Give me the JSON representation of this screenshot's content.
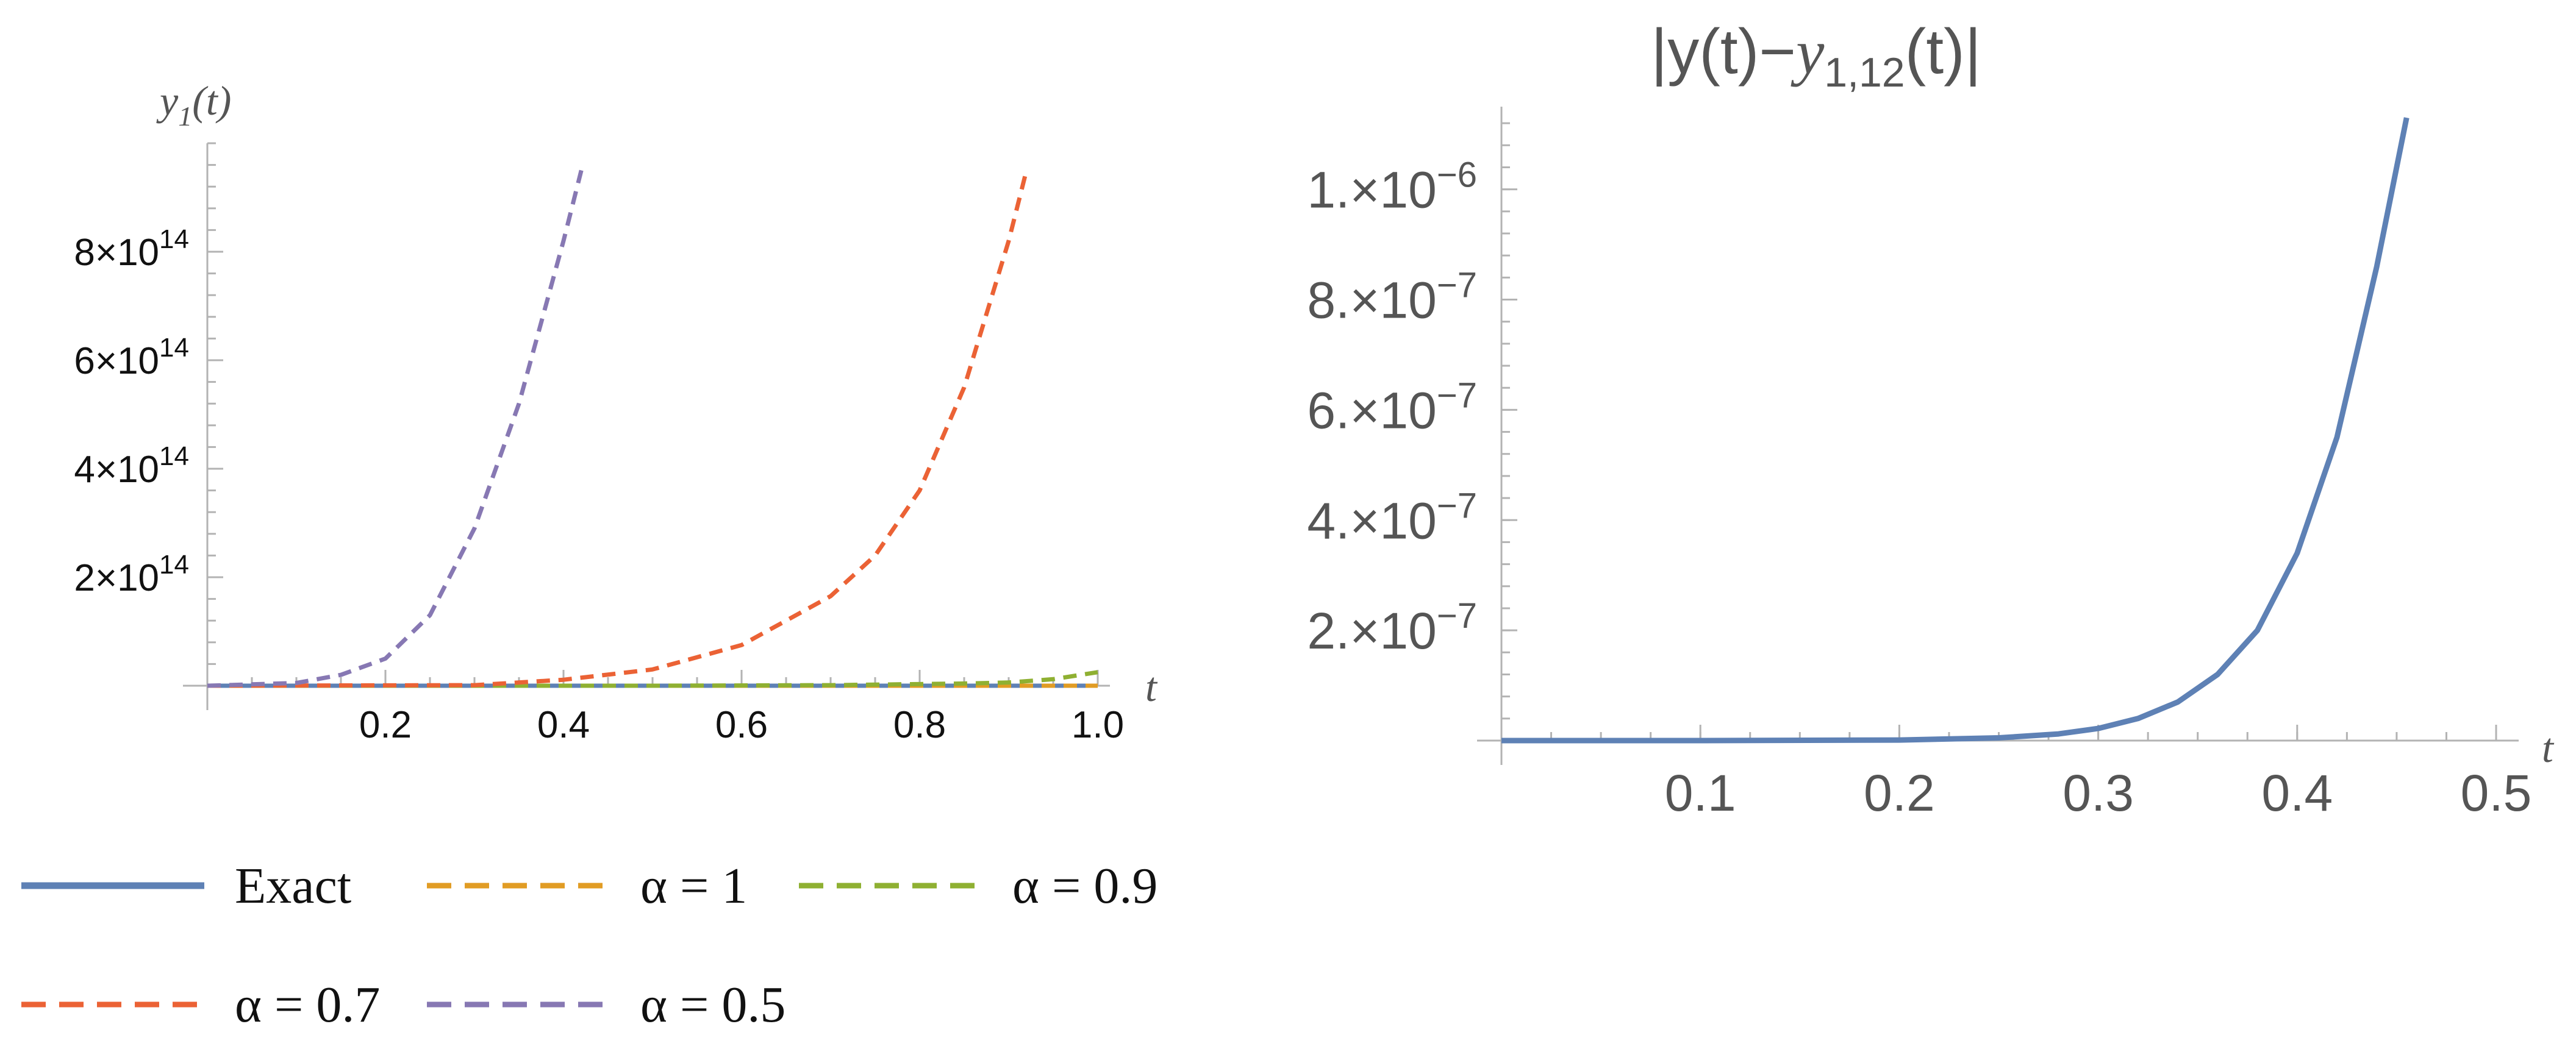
{
  "chart_data": [
    {
      "type": "line",
      "ylabel_base": "y",
      "ylabel_sub": "1",
      "ylabel_arg": "(t)",
      "xlabel": "t",
      "xlim": [
        0,
        1.0
      ],
      "ylim": [
        0,
        1000000000000000.0
      ],
      "x_ticks": [
        "0.2",
        "0.4",
        "0.6",
        "0.8",
        "1.0"
      ],
      "x_tick_values": [
        0.2,
        0.4,
        0.6,
        0.8,
        1.0
      ],
      "y_ticks": [
        {
          "mant": "2",
          "exp": "14",
          "value": 200000000000000.0
        },
        {
          "mant": "4",
          "exp": "14",
          "value": 400000000000000.0
        },
        {
          "mant": "6",
          "exp": "14",
          "value": 600000000000000.0
        },
        {
          "mant": "8",
          "exp": "14",
          "value": 800000000000000.0
        }
      ],
      "legend_placement": "bottom",
      "series": [
        {
          "name": "Exact",
          "color": "#5e81b5",
          "style": "solid",
          "x": [
            0,
            0.2,
            0.4,
            0.6,
            0.8,
            1.0
          ],
          "y": [
            0,
            0,
            0,
            0,
            0,
            0
          ]
        },
        {
          "name": "α = 1",
          "color": "#e19c24",
          "style": "dashed",
          "x": [
            0,
            0.2,
            0.4,
            0.6,
            0.8,
            1.0
          ],
          "y": [
            0,
            0,
            0,
            0,
            0,
            0
          ]
        },
        {
          "name": "α = 0.9",
          "color": "#8fb032",
          "style": "dashed",
          "x": [
            0,
            0.5,
            0.7,
            0.85,
            0.9,
            0.95,
            1.0
          ],
          "y": [
            0,
            0,
            1000000000000.0,
            4000000000000.0,
            6000000000000.0,
            12000000000000.0,
            25000000000000.0
          ]
        },
        {
          "name": "α = 0.7",
          "color": "#eb6235",
          "style": "dashed",
          "x": [
            0,
            0.3,
            0.4,
            0.5,
            0.6,
            0.7,
            0.75,
            0.8,
            0.85,
            0.9,
            0.92
          ],
          "y": [
            0,
            1000000000000.0,
            11000000000000.0,
            30000000000000.0,
            75000000000000.0,
            165000000000000.0,
            240000000000000.0,
            360000000000000.0,
            550000000000000.0,
            820000000000000.0,
            950000000000000.0
          ]
        },
        {
          "name": "α = 0.5",
          "color": "#8778b3",
          "style": "dashed",
          "x": [
            0,
            0.1,
            0.15,
            0.2,
            0.25,
            0.3,
            0.35,
            0.4,
            0.42
          ],
          "y": [
            0,
            5000000000000.0,
            20000000000000.0,
            50000000000000.0,
            130000000000000.0,
            290000000000000.0,
            520000000000000.0,
            820000000000000.0,
            950000000000000.0
          ]
        }
      ]
    },
    {
      "type": "line",
      "title_parts": {
        "pre": "|y(t)−",
        "y": "y",
        "sub": "1,12",
        "post": "(t)|"
      },
      "xlabel": "t",
      "xlim": [
        0,
        0.5
      ],
      "ylim": [
        0,
        1.15e-06
      ],
      "x_ticks": [
        "0.1",
        "0.2",
        "0.3",
        "0.4",
        "0.5"
      ],
      "x_tick_values": [
        0.1,
        0.2,
        0.3,
        0.4,
        0.5
      ],
      "y_ticks": [
        {
          "mant": "2.",
          "exp": "−7",
          "value": 2e-07
        },
        {
          "mant": "4.",
          "exp": "−7",
          "value": 4e-07
        },
        {
          "mant": "6.",
          "exp": "−7",
          "value": 6e-07
        },
        {
          "mant": "8.",
          "exp": "−7",
          "value": 8e-07
        },
        {
          "mant": "1.",
          "exp": "−6",
          "value": 1e-06
        }
      ],
      "series": [
        {
          "color": "#5e81b5",
          "style": "solid",
          "x": [
            0,
            0.1,
            0.2,
            0.25,
            0.28,
            0.3,
            0.32,
            0.34,
            0.36,
            0.38,
            0.4,
            0.42,
            0.44,
            0.455
          ],
          "y": [
            0,
            0,
            1e-09,
            5e-09,
            1.2e-08,
            2.2e-08,
            4e-08,
            7e-08,
            1.2e-07,
            2e-07,
            3.4e-07,
            5.5e-07,
            8.6e-07,
            1.13e-06
          ]
        }
      ]
    }
  ]
}
